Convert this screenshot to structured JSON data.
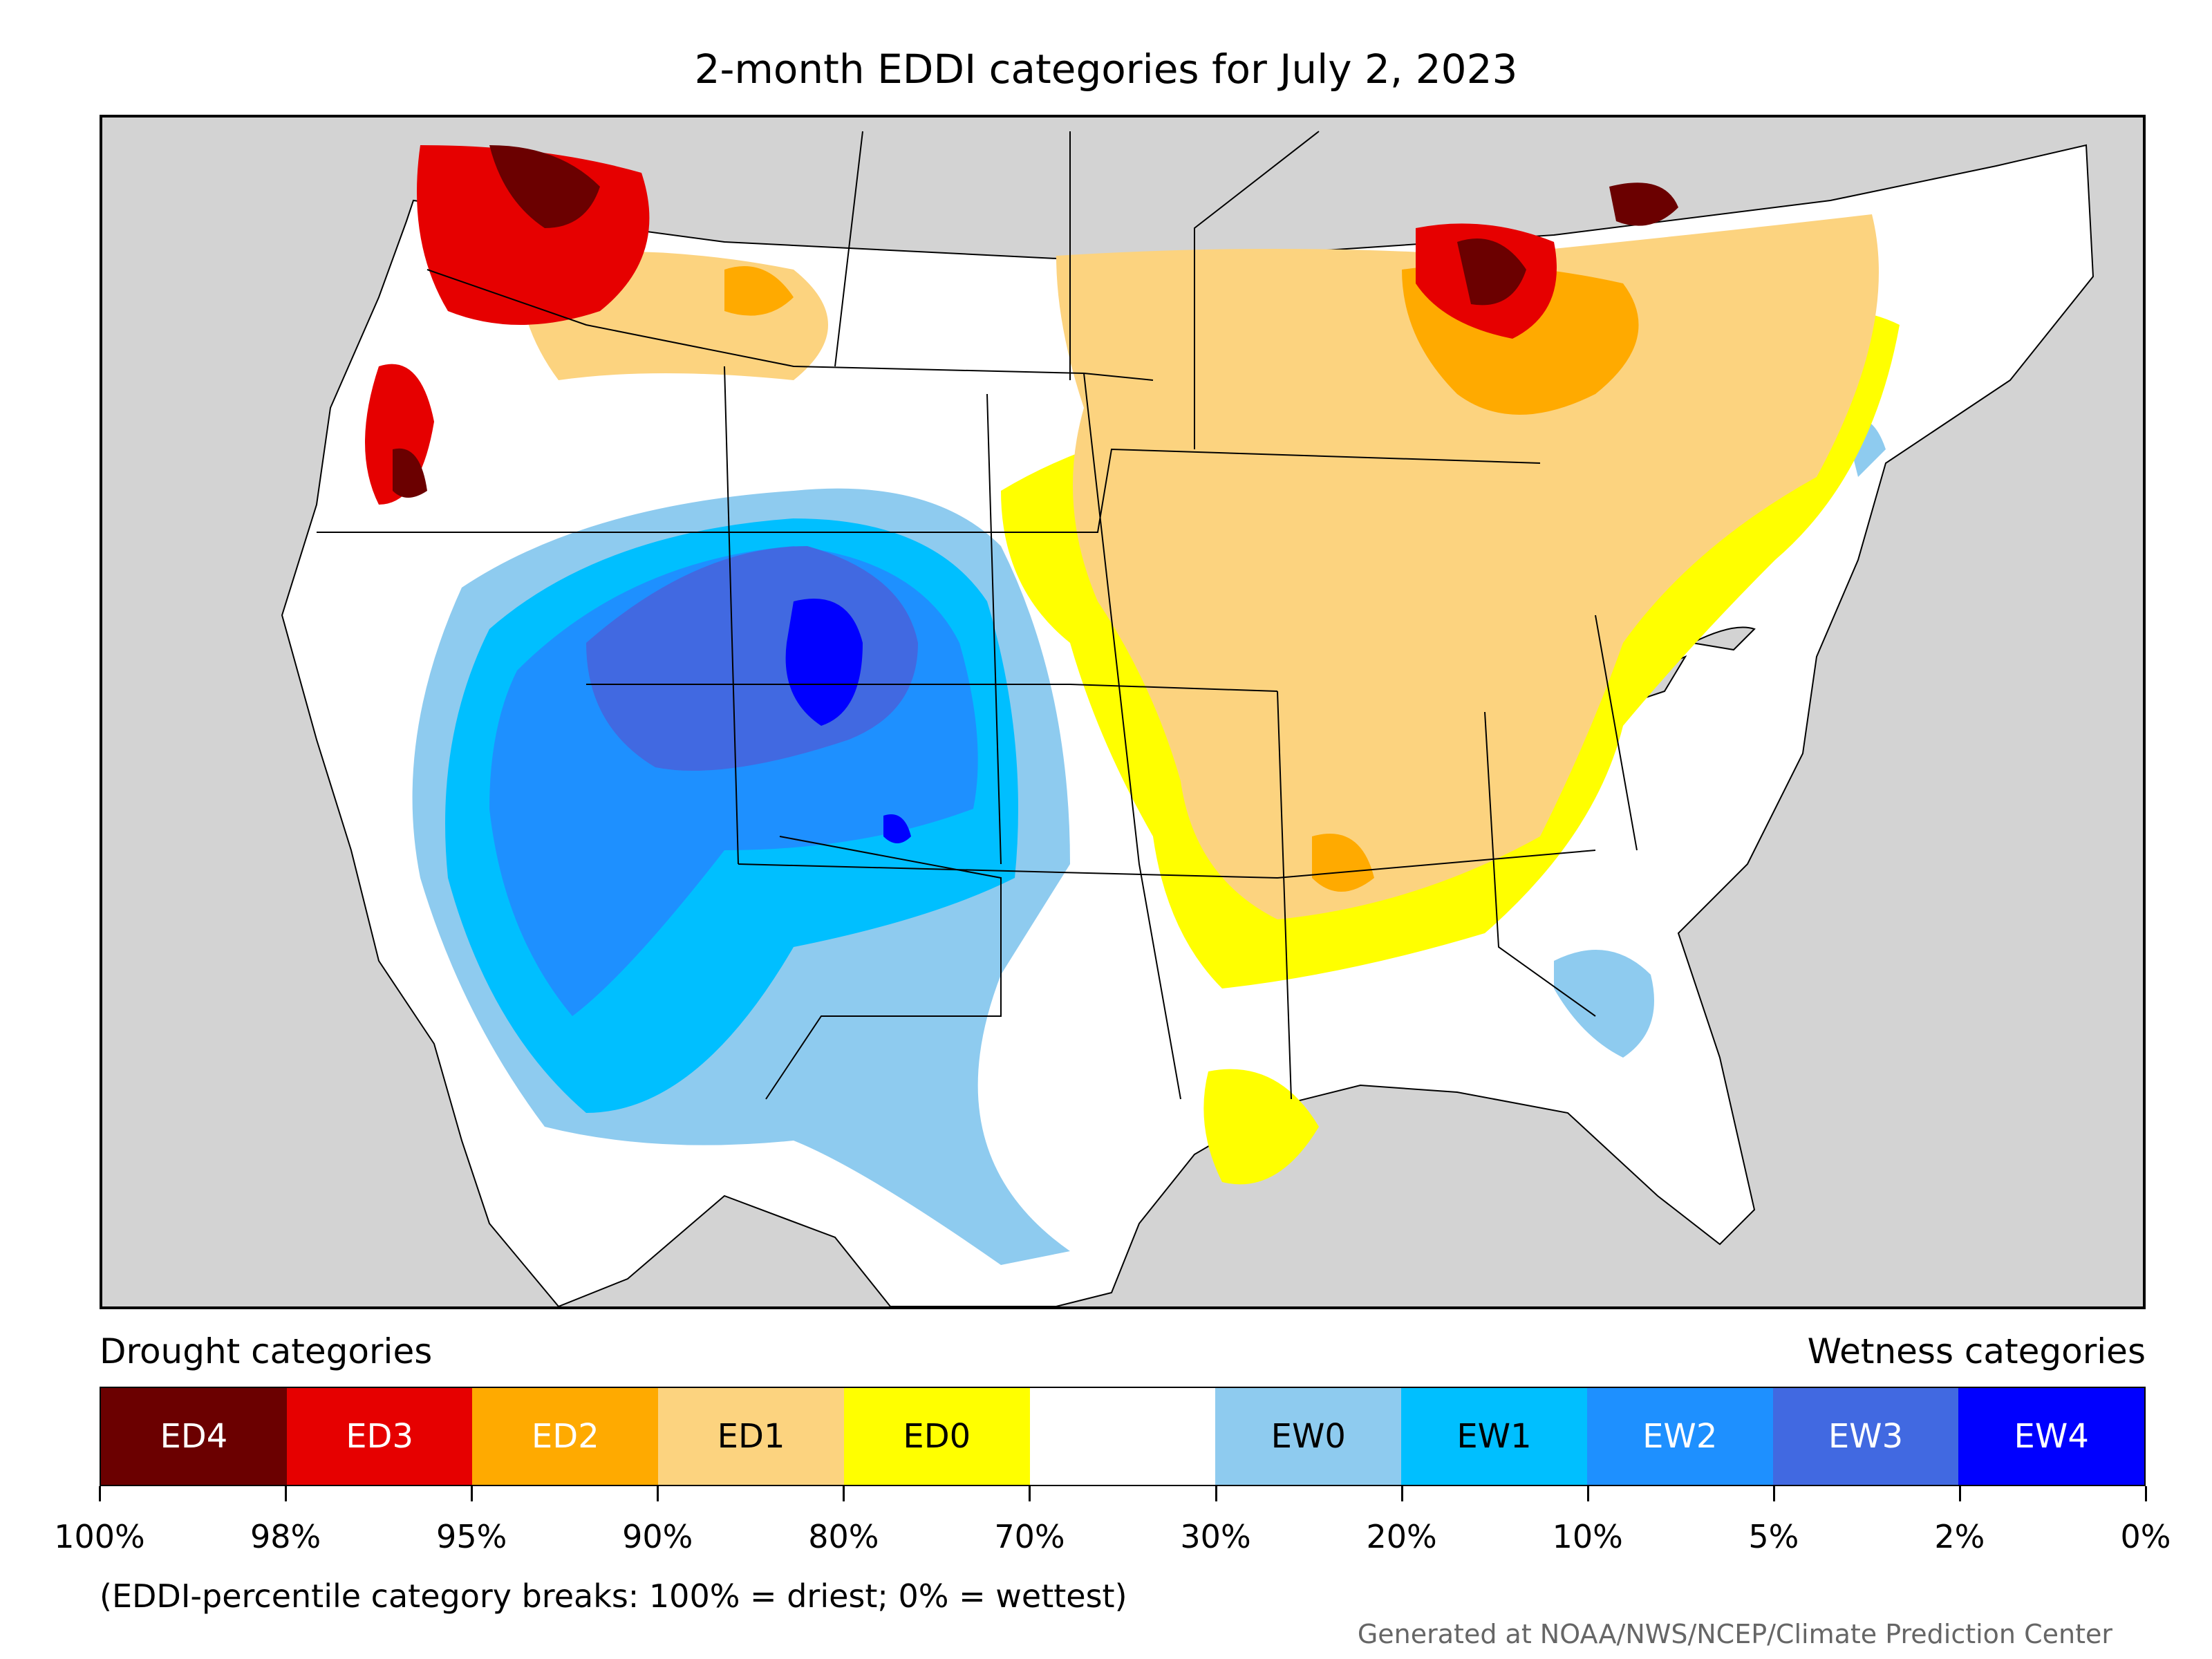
{
  "title": "2-month EDDI categories for July 2, 2023",
  "legend": {
    "left_heading": "Drought categories",
    "right_heading": "Wetness categories",
    "categories": [
      {
        "label": "ED4",
        "color": "#6b0000",
        "text_color": "#ffffff"
      },
      {
        "label": "ED3",
        "color": "#e60000",
        "text_color": "#ffffff"
      },
      {
        "label": "ED2",
        "color": "#ffaa00",
        "text_color": "#ffffff"
      },
      {
        "label": "ED1",
        "color": "#fcd37f",
        "text_color": "#000000"
      },
      {
        "label": "ED0",
        "color": "#ffff00",
        "text_color": "#000000"
      },
      {
        "label": "",
        "color": "#ffffff",
        "text_color": "#000000"
      },
      {
        "label": "EW0",
        "color": "#8ecbef",
        "text_color": "#000000"
      },
      {
        "label": "EW1",
        "color": "#00bfff",
        "text_color": "#000000"
      },
      {
        "label": "EW2",
        "color": "#1e90ff",
        "text_color": "#ffffff"
      },
      {
        "label": "EW3",
        "color": "#4169e1",
        "text_color": "#ffffff"
      },
      {
        "label": "EW4",
        "color": "#0000ff",
        "text_color": "#ffffff"
      }
    ],
    "tick_labels": [
      "100%",
      "98%",
      "95%",
      "90%",
      "80%",
      "70%",
      "30%",
      "20%",
      "10%",
      "5%",
      "2%",
      "0%"
    ]
  },
  "note": "(EDDI-percentile category breaks: 100% = driest; 0% = wettest)",
  "credit": "Generated at NOAA/NWS/NCEP/Climate Prediction Center"
}
